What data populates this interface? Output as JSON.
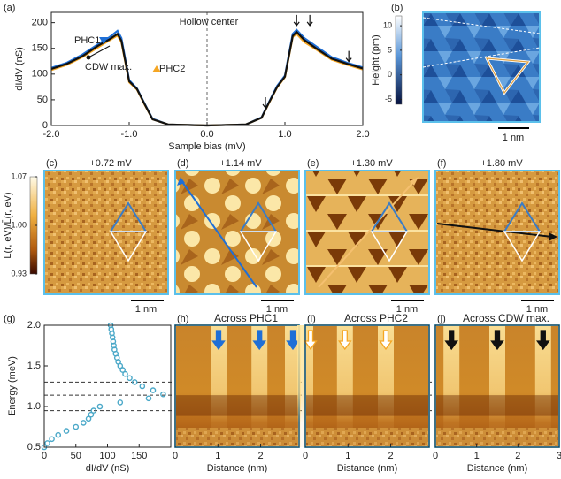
{
  "chart_data": [
    {
      "type": "line",
      "label": "(a)",
      "xlabel": "Sample bias (mV)",
      "ylabel": "dI/dV (nS)",
      "annotation": "Hollow center",
      "x": [
        -2,
        -1.8,
        -1.6,
        -1.4,
        -1.25,
        -1.15,
        -1.1,
        -1.0,
        -0.9,
        -0.8,
        -0.7,
        -0.5,
        0,
        0.5,
        0.7,
        0.8,
        0.9,
        1.0,
        1.1,
        1.15,
        1.25,
        1.4,
        1.6,
        1.8,
        2
      ],
      "series": [
        {
          "name": "PHC1",
          "color": "#1f6fd6",
          "values": [
            112,
            122,
            138,
            158,
            172,
            184,
            170,
            88,
            72,
            42,
            13,
            2,
            0,
            2,
            16,
            47,
            77,
            97,
            178,
            186,
            170,
            154,
            133,
            122,
            113
          ]
        },
        {
          "name": "PHC2",
          "color": "#f5a623",
          "values": [
            108,
            118,
            133,
            152,
            166,
            175,
            162,
            84,
            70,
            40,
            12,
            2,
            0,
            2,
            15,
            45,
            74,
            94,
            172,
            178,
            162,
            148,
            128,
            118,
            109
          ]
        },
        {
          "name": "CDW max.",
          "color": "#111111",
          "values": [
            110,
            120,
            135,
            155,
            168,
            178,
            165,
            86,
            71,
            41,
            12,
            2,
            0,
            2,
            15,
            46,
            75,
            95,
            174,
            182,
            166,
            150,
            130,
            120,
            111
          ]
        }
      ],
      "xlim": [
        -2,
        2
      ],
      "xticks": [
        {
          "value": -2,
          "label": "-2.0"
        },
        {
          "value": -1,
          "label": "-1.0"
        },
        {
          "value": 0,
          "label": "0.0"
        },
        {
          "value": 1,
          "label": "1.0"
        },
        {
          "value": 2,
          "label": "2.0"
        }
      ],
      "ylim": [
        0,
        220
      ],
      "yticks": [
        0,
        50,
        100,
        150,
        200
      ],
      "vline": 0
    },
    {
      "type": "scatter",
      "label": "(g)",
      "xlabel": "dI/dV (nS)",
      "ylabel": "Energy (meV)",
      "color": "#4aa8c8",
      "x": [
        0,
        5,
        12,
        22,
        35,
        50,
        62,
        70,
        74,
        78,
        88,
        120,
        165,
        188,
        172,
        155,
        143,
        135,
        128,
        124,
        120,
        117,
        115,
        113,
        111,
        110,
        109,
        108,
        107,
        106,
        105
      ],
      "values": [
        0.5,
        0.55,
        0.6,
        0.65,
        0.7,
        0.75,
        0.8,
        0.85,
        0.9,
        0.95,
        1.0,
        1.05,
        1.1,
        1.15,
        1.2,
        1.25,
        1.3,
        1.35,
        1.4,
        1.45,
        1.5,
        1.55,
        1.6,
        1.65,
        1.7,
        1.75,
        1.8,
        1.85,
        1.9,
        1.95,
        2.0
      ],
      "xlim": [
        0,
        200
      ],
      "xticks": [
        0,
        50,
        100,
        150
      ],
      "ylim": [
        0.5,
        2.0
      ],
      "yticks": [
        0.5,
        {
          "value": 1,
          "label": "1.0"
        },
        1.5,
        {
          "value": 2,
          "label": "2.0"
        }
      ],
      "hlines": [
        0.95,
        1.14,
        1.3
      ]
    },
    {
      "type": "heatmap",
      "label": "(h)",
      "title": "Across PHC1",
      "title_color": "#1f6fd6",
      "xlabel": "Distance (nm)",
      "xlim": [
        0,
        2.9
      ],
      "xticks": [
        0,
        1,
        2
      ],
      "ylim": [
        0.5,
        2.0
      ]
    },
    {
      "type": "heatmap",
      "label": "(i)",
      "title": "Across PHC2",
      "title_color": "#f5a623",
      "xlabel": "Distance (nm)",
      "xlim": [
        0,
        2.9
      ],
      "xticks": [
        0,
        1,
        2
      ],
      "ylim": [
        0.5,
        2.0
      ]
    },
    {
      "type": "heatmap",
      "label": "(j)",
      "title": "Across CDW max.",
      "title_color": "#111111",
      "xlabel": "Distance (nm)",
      "xlim": [
        0,
        3
      ],
      "xticks": [
        0,
        1,
        2,
        3
      ],
      "ylim": [
        0.5,
        2.0
      ]
    }
  ],
  "images": [
    {
      "label": "(b)",
      "scalebar": "1 nm"
    },
    {
      "label": "(c)",
      "title": "+0.72 mV",
      "scalebar": "1 nm"
    },
    {
      "label": "(d)",
      "title": "+1.14 mV",
      "scalebar": "1 nm"
    },
    {
      "label": "(e)",
      "title": "+1.30 mV",
      "scalebar": "1 nm"
    },
    {
      "label": "(f)",
      "title": "+1.80 mV",
      "scalebar": "1 nm"
    }
  ],
  "colorbars": [
    {
      "label": "Height (pm)",
      "lim": [
        -6,
        12
      ],
      "ticks": [
        10,
        5,
        0,
        -5
      ]
    },
    {
      "label": "L(r, eV)/L̄(r, eV)",
      "lim": [
        0.93,
        1.07
      ],
      "ticks": [
        1.07,
        {
          "value": 1,
          "label": "1.00"
        },
        0.93
      ]
    }
  ]
}
